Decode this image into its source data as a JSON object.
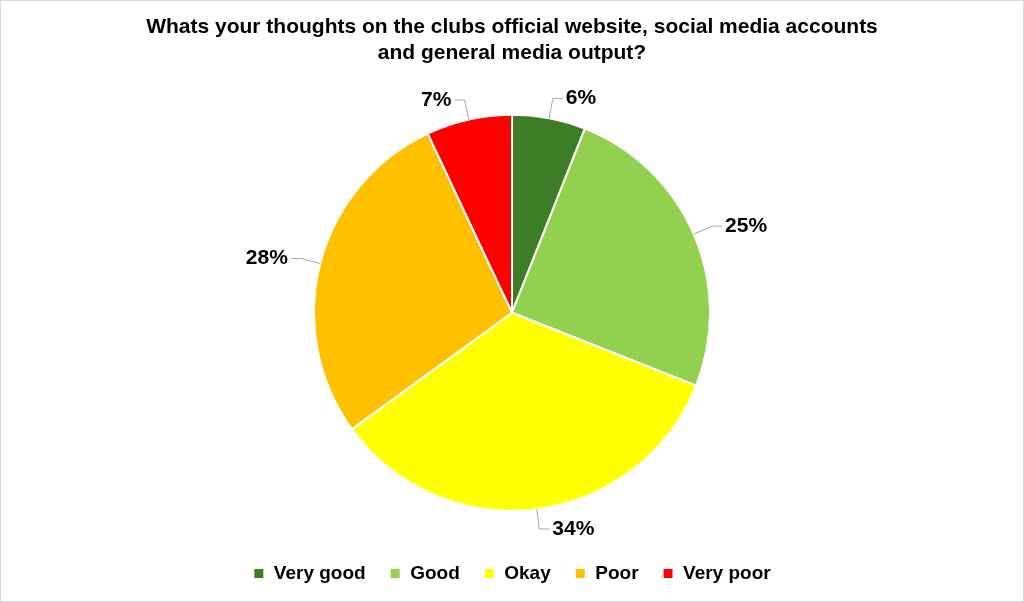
{
  "chart_data": {
    "type": "pie",
    "title": "Whats your thoughts on the clubs official website, social media accounts and general media output?",
    "categories": [
      "Very good",
      "Good",
      "Okay",
      "Poor",
      "Very poor"
    ],
    "values": [
      6,
      25,
      34,
      28,
      7
    ],
    "value_labels": [
      "6%",
      "25%",
      "34%",
      "28%",
      "7%"
    ],
    "colors": [
      "#3e7d27",
      "#92d050",
      "#ffff00",
      "#ffc000",
      "#ff0000"
    ],
    "legend": "bottom"
  }
}
